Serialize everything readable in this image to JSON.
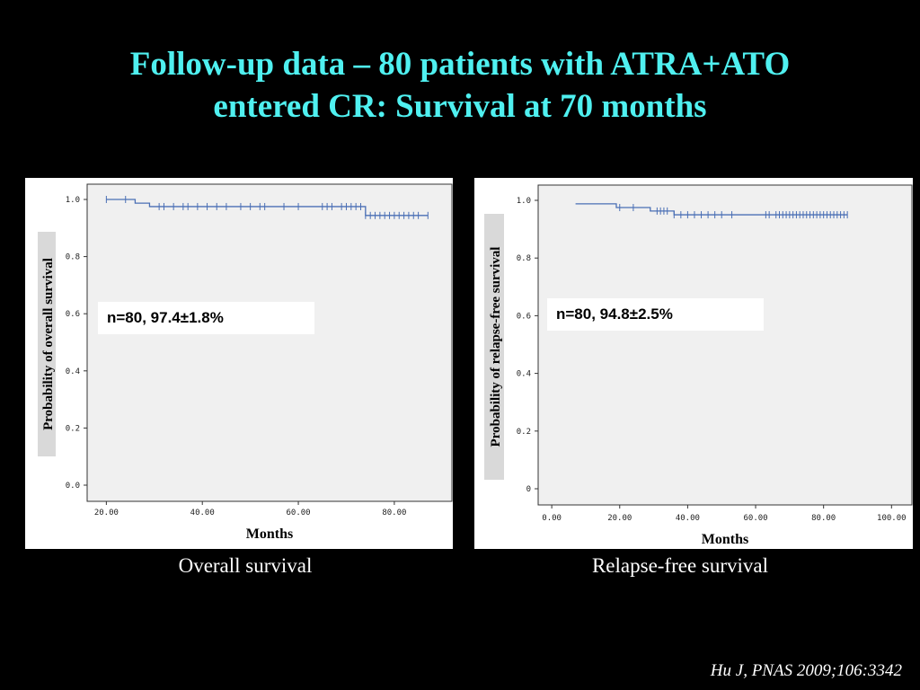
{
  "title_line1": "Follow-up data – 80 patients with ATRA+ATO",
  "title_line2": "entered CR: Survival at 70 months",
  "citation": "Hu J, PNAS 2009;106:3342",
  "colors": {
    "title": "#4ff0f0",
    "curve": "#4a6fb5",
    "plot_bg": "#f0f0f0"
  },
  "chart_data": [
    {
      "type": "line",
      "caption": "Overall survival",
      "xlabel": "Months",
      "ylabel": "Probability of overall survival",
      "annotation": "n=80, 97.4±1.8%",
      "xlim": [
        16,
        92
      ],
      "ylim": [
        0,
        1.0
      ],
      "x_ticks": [
        20,
        40,
        60,
        80
      ],
      "x_tick_labels": [
        "20.00",
        "40.00",
        "60.00",
        "80.00"
      ],
      "y_ticks": [
        0,
        0.2,
        0.4,
        0.6,
        0.8,
        1.0
      ],
      "y_tick_labels": [
        "0.0",
        "0.2",
        "0.4",
        "0.6",
        "0.8",
        "1.0"
      ],
      "steps": [
        [
          20,
          1.0
        ],
        [
          26,
          0.987
        ],
        [
          29,
          0.975
        ],
        [
          73,
          0.975
        ],
        [
          74,
          0.944
        ],
        [
          87,
          0.944
        ]
      ],
      "censored": [
        [
          20,
          1.0
        ],
        [
          24,
          1.0
        ],
        [
          31,
          0.975
        ],
        [
          32,
          0.975
        ],
        [
          34,
          0.975
        ],
        [
          36,
          0.975
        ],
        [
          37,
          0.975
        ],
        [
          39,
          0.975
        ],
        [
          41,
          0.975
        ],
        [
          43,
          0.975
        ],
        [
          45,
          0.975
        ],
        [
          48,
          0.975
        ],
        [
          50,
          0.975
        ],
        [
          52,
          0.975
        ],
        [
          53,
          0.975
        ],
        [
          57,
          0.975
        ],
        [
          60,
          0.975
        ],
        [
          65,
          0.975
        ],
        [
          66,
          0.975
        ],
        [
          67,
          0.975
        ],
        [
          69,
          0.975
        ],
        [
          70,
          0.975
        ],
        [
          71,
          0.975
        ],
        [
          72,
          0.975
        ],
        [
          73,
          0.975
        ],
        [
          74,
          0.944
        ],
        [
          75,
          0.944
        ],
        [
          76,
          0.944
        ],
        [
          77,
          0.944
        ],
        [
          78,
          0.944
        ],
        [
          79,
          0.944
        ],
        [
          80,
          0.944
        ],
        [
          81,
          0.944
        ],
        [
          82,
          0.944
        ],
        [
          83,
          0.944
        ],
        [
          84,
          0.944
        ],
        [
          85,
          0.944
        ],
        [
          87,
          0.944
        ]
      ]
    },
    {
      "type": "line",
      "caption": "Relapse-free survival",
      "xlabel": "Months",
      "ylabel": "Probability of relapse-free survival",
      "annotation": "n=80, 94.8±2.5%",
      "xlim": [
        -4,
        106
      ],
      "ylim": [
        0,
        1.0
      ],
      "x_ticks": [
        0,
        20,
        40,
        60,
        80,
        100
      ],
      "x_tick_labels": [
        "0.00",
        "20.00",
        "40.00",
        "60.00",
        "80.00",
        "100.00"
      ],
      "y_ticks": [
        0,
        0.2,
        0.4,
        0.6,
        0.8,
        1.0
      ],
      "y_tick_labels": [
        "0",
        "0.2",
        "0.4",
        "0.6",
        "0.8",
        "1.0"
      ],
      "steps": [
        [
          7,
          0.988
        ],
        [
          18,
          0.988
        ],
        [
          19,
          0.975
        ],
        [
          28,
          0.975
        ],
        [
          29,
          0.963
        ],
        [
          34,
          0.963
        ],
        [
          36,
          0.95
        ],
        [
          87,
          0.95
        ]
      ],
      "censored": [
        [
          20,
          0.975
        ],
        [
          24,
          0.975
        ],
        [
          31,
          0.963
        ],
        [
          32,
          0.963
        ],
        [
          33,
          0.963
        ],
        [
          34,
          0.963
        ],
        [
          36,
          0.95
        ],
        [
          38,
          0.95
        ],
        [
          40,
          0.95
        ],
        [
          42,
          0.95
        ],
        [
          44,
          0.95
        ],
        [
          46,
          0.95
        ],
        [
          48,
          0.95
        ],
        [
          50,
          0.95
        ],
        [
          53,
          0.95
        ],
        [
          63,
          0.95
        ],
        [
          64,
          0.95
        ],
        [
          66,
          0.95
        ],
        [
          67,
          0.95
        ],
        [
          68,
          0.95
        ],
        [
          69,
          0.95
        ],
        [
          70,
          0.95
        ],
        [
          71,
          0.95
        ],
        [
          72,
          0.95
        ],
        [
          73,
          0.95
        ],
        [
          74,
          0.95
        ],
        [
          75,
          0.95
        ],
        [
          76,
          0.95
        ],
        [
          77,
          0.95
        ],
        [
          78,
          0.95
        ],
        [
          79,
          0.95
        ],
        [
          80,
          0.95
        ],
        [
          81,
          0.95
        ],
        [
          82,
          0.95
        ],
        [
          83,
          0.95
        ],
        [
          84,
          0.95
        ],
        [
          85,
          0.95
        ],
        [
          86,
          0.95
        ],
        [
          87,
          0.95
        ]
      ]
    }
  ]
}
